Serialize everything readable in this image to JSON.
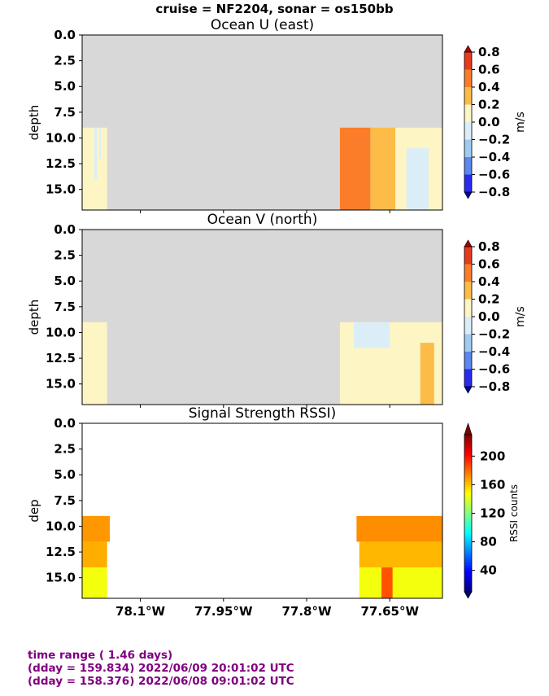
{
  "suptitle": "cruise = NF2204,  sonar = os150bb",
  "footer": {
    "line1": "time range ( 1.46 days)",
    "line2": "(dday = 159.834) 2022/06/09 20:01:02 UTC",
    "line3": "(dday = 158.376) 2022/06/08 09:01:02 UTC"
  },
  "colors": {
    "nodata": "#d8d8d8",
    "footer_text": "#800080"
  },
  "chart_data": [
    {
      "type": "heatmap",
      "title": "Ocean U (east)",
      "ylabel": "depth",
      "yticks": [
        "0.0",
        "2.5",
        "5.0",
        "7.5",
        "10.0",
        "12.5",
        "15.0"
      ],
      "ytick_values": [
        0,
        2.5,
        5,
        7.5,
        10,
        12.5,
        15
      ],
      "ylim": [
        17,
        0
      ],
      "xlim": [
        -78.205,
        -77.555
      ],
      "xticks": [],
      "colorbar": {
        "label": "m/s",
        "ticks": [
          "0.8",
          "0.6",
          "0.4",
          "0.2",
          "0.0",
          "−0.2",
          "−0.4",
          "−0.6",
          "−0.8"
        ],
        "levels": [
          0.8,
          0.6,
          0.4,
          0.2,
          0.0,
          -0.2,
          -0.4,
          -0.6,
          -0.8
        ],
        "colors": [
          "#b30000",
          "#e83b1e",
          "#fb7d2a",
          "#fdbb48",
          "#fef5c4",
          "#dbeef8",
          "#9fcbf2",
          "#5a87f0",
          "#2a2af0",
          "#0000b0"
        ]
      },
      "data_blocks": [
        {
          "x": [
            -78.205,
            -78.16
          ],
          "depth": [
            9.0,
            17.0
          ],
          "value": 0.1
        },
        {
          "x": [
            -78.183,
            -78.178
          ],
          "depth": [
            9.0,
            14.0
          ],
          "value": -0.1
        },
        {
          "x": [
            -78.174,
            -78.171
          ],
          "depth": [
            9.0,
            12.0
          ],
          "value": -0.1
        },
        {
          "x": [
            -77.74,
            -77.685
          ],
          "depth": [
            9.0,
            17.0
          ],
          "value": 0.5
        },
        {
          "x": [
            -77.685,
            -77.64
          ],
          "depth": [
            9.0,
            17.0
          ],
          "value": 0.3
        },
        {
          "x": [
            -77.64,
            -77.555
          ],
          "depth": [
            9.0,
            17.0
          ],
          "value": 0.1
        },
        {
          "x": [
            -77.62,
            -77.58
          ],
          "depth": [
            11.0,
            17.0
          ],
          "value": -0.1
        }
      ]
    },
    {
      "type": "heatmap",
      "title": "Ocean V (north)",
      "ylabel": "depth",
      "yticks": [
        "0.0",
        "2.5",
        "5.0",
        "7.5",
        "10.0",
        "12.5",
        "15.0"
      ],
      "ytick_values": [
        0,
        2.5,
        5,
        7.5,
        10,
        12.5,
        15
      ],
      "ylim": [
        17,
        0
      ],
      "xlim": [
        -78.205,
        -77.555
      ],
      "xticks": [],
      "colorbar": {
        "label": "m/s",
        "ticks": [
          "0.8",
          "0.6",
          "0.4",
          "0.2",
          "0.0",
          "−0.2",
          "−0.4",
          "−0.6",
          "−0.8"
        ],
        "levels": [
          0.8,
          0.6,
          0.4,
          0.2,
          0.0,
          -0.2,
          -0.4,
          -0.6,
          -0.8
        ],
        "colors": [
          "#b30000",
          "#e83b1e",
          "#fb7d2a",
          "#fdbb48",
          "#fef5c4",
          "#dbeef8",
          "#9fcbf2",
          "#5a87f0",
          "#2a2af0",
          "#0000b0"
        ]
      },
      "data_blocks": [
        {
          "x": [
            -78.205,
            -78.16
          ],
          "depth": [
            9.0,
            17.0
          ],
          "value": 0.1
        },
        {
          "x": [
            -77.74,
            -77.555
          ],
          "depth": [
            9.0,
            17.0
          ],
          "value": 0.1
        },
        {
          "x": [
            -77.715,
            -77.65
          ],
          "depth": [
            9.0,
            11.5
          ],
          "value": -0.1
        },
        {
          "x": [
            -77.595,
            -77.57
          ],
          "depth": [
            11.0,
            17.0
          ],
          "value": 0.3
        }
      ]
    },
    {
      "type": "heatmap",
      "title": "Signal Strength RSSI)",
      "ylabel": "dep",
      "yticks": [
        "0.0",
        "2.5",
        "5.0",
        "7.5",
        "10.0",
        "12.5",
        "15.0"
      ],
      "ytick_values": [
        0,
        2.5,
        5,
        7.5,
        10,
        12.5,
        15
      ],
      "ylim": [
        17,
        0
      ],
      "xlim": [
        -78.205,
        -77.555
      ],
      "xticks": [
        "78.1°W",
        "77.95°W",
        "77.8°W",
        "77.65°W"
      ],
      "xtick_values": [
        -78.1,
        -77.95,
        -77.8,
        -77.65
      ],
      "colorbar": {
        "label": "RSSI counts",
        "ticks": [
          "200",
          "160",
          "120",
          "80",
          "40"
        ],
        "tick_values": [
          200,
          160,
          120,
          80,
          40
        ],
        "range": [
          10,
          230
        ]
      },
      "rows": [
        {
          "depth": [
            9.0,
            11.5
          ],
          "cells": [
            {
              "x": [
                -78.205,
                -78.155
              ],
              "value": 170
            },
            {
              "x": [
                -77.71,
                -77.555
              ],
              "value": 172
            }
          ]
        },
        {
          "depth": [
            11.5,
            14.0
          ],
          "cells": [
            {
              "x": [
                -78.205,
                -78.16
              ],
              "value": 165
            },
            {
              "x": [
                -77.705,
                -77.555
              ],
              "value": 163
            }
          ]
        },
        {
          "depth": [
            14.0,
            17.0
          ],
          "cells": [
            {
              "x": [
                -78.205,
                -78.16
              ],
              "value": 145
            },
            {
              "x": [
                -77.705,
                -77.555
              ],
              "value": 145
            },
            {
              "x": [
                -77.665,
                -77.645
              ],
              "value": 185
            }
          ]
        }
      ]
    }
  ]
}
